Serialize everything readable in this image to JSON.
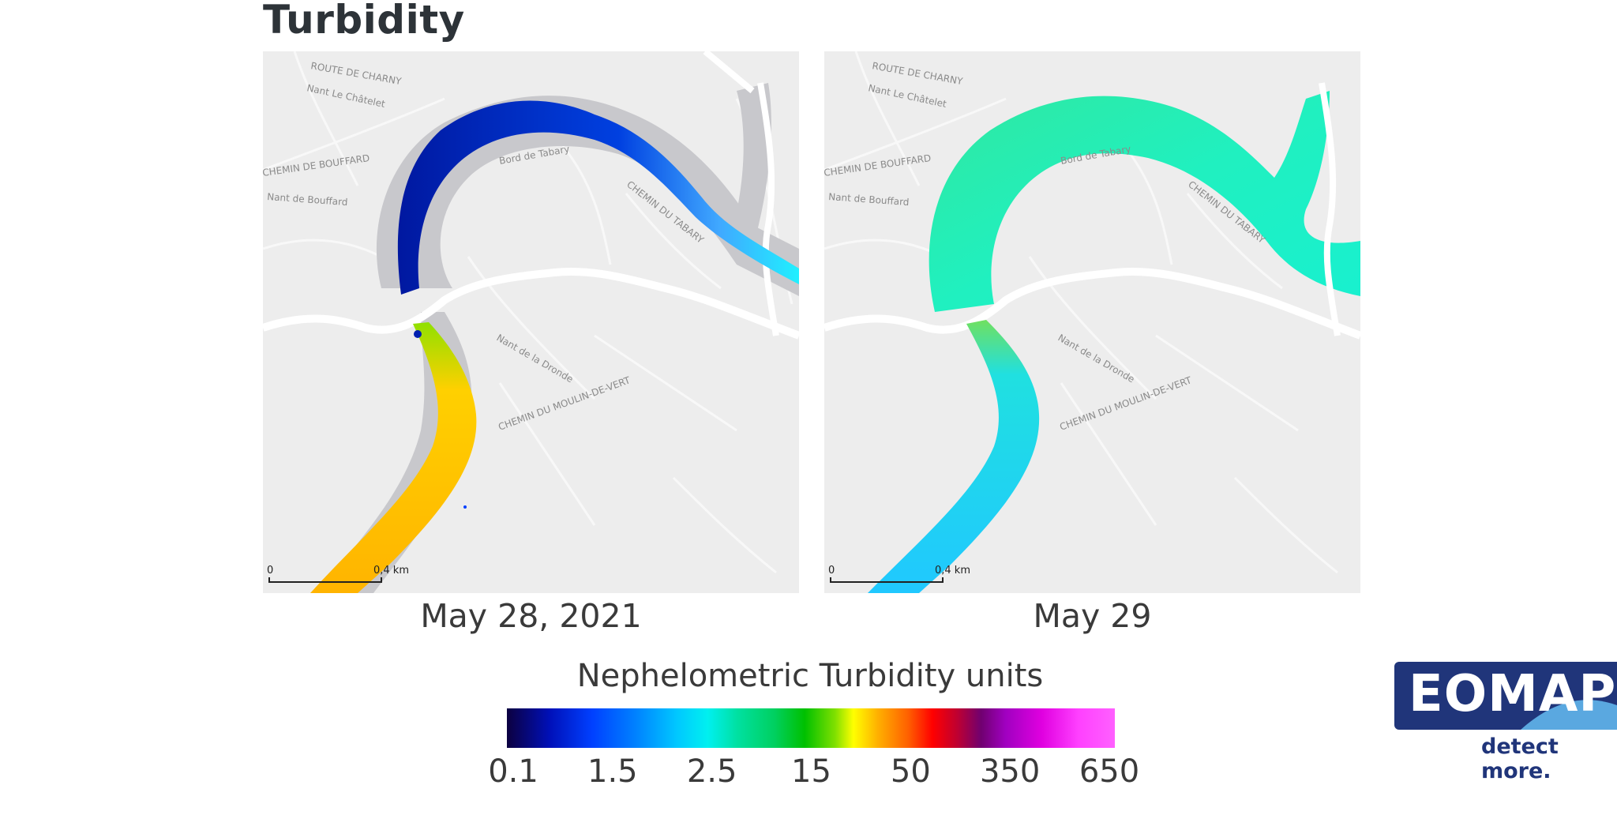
{
  "title": "Turbidity",
  "maps": [
    {
      "date": "May 28, 2021",
      "scale": {
        "start": "0",
        "end": "0,4 km"
      }
    },
    {
      "date": "May 29",
      "scale": {
        "start": "0",
        "end": "0,4 km"
      }
    }
  ],
  "street_labels": {
    "route_de_charny": "ROUTE DE CHARNY",
    "nant_le_chatelet": "Nant Le Châtelet",
    "chemin_de_bouffard": "CHEMIN DE BOUFFARD",
    "nant_de_bouffard": "Nant de Bouffard",
    "bord_de_tabary": "Bord de Tabary",
    "chemin_du_tabary": "CHEMIN DU TABARY",
    "nant_de_la_dronde": "Nant de la Dronde",
    "chemin_du_moulin_de_vert": "CHEMIN DU MOULIN-DE-VERT"
  },
  "legend": {
    "title": "Nephelometric Turbidity units",
    "ticks": [
      "0.1",
      "1.5",
      "2.5",
      "15",
      "50",
      "350",
      "650"
    ],
    "tick_values": [
      0.1,
      1.5,
      2.5,
      15,
      50,
      350,
      650
    ]
  },
  "logo": {
    "name": "EOMAP",
    "tagline": "detect more."
  },
  "colors": {
    "map_background": "#ededed",
    "river_shadow": "#c8c8cc",
    "roads": "#ffffff",
    "low_turbidity": "#0020c0",
    "mid_turbidity": "#20e8c8",
    "high_turbidity": "#ffb000",
    "logo_blue": "#20357a"
  }
}
